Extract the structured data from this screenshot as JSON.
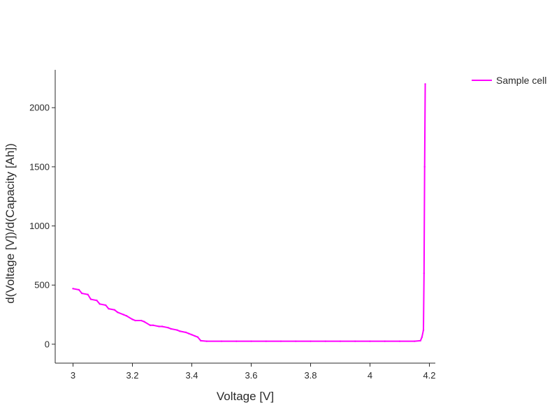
{
  "chart_data": {
    "type": "line",
    "title": "",
    "xlabel": "Voltage [V]",
    "ylabel": "d(Voltage [V])/d(Capacity [Ah])",
    "xlim": [
      2.94,
      4.22
    ],
    "ylim": [
      -160,
      2320
    ],
    "xticks": [
      3,
      3.2,
      3.4,
      3.6,
      3.8,
      4,
      4.2
    ],
    "xtick_labels": [
      "3",
      "3.2",
      "3.4",
      "3.6",
      "3.8",
      "4",
      "4.2"
    ],
    "yticks": [
      0,
      500,
      1000,
      1500,
      2000
    ],
    "ytick_labels": [
      "0",
      "500",
      "1000",
      "1500",
      "2000"
    ],
    "grid": false,
    "legend_position": "top-right",
    "series": [
      {
        "name": "Sample cell",
        "color": "#ff00ff",
        "x": [
          3.0,
          3.02,
          3.03,
          3.05,
          3.06,
          3.08,
          3.09,
          3.11,
          3.12,
          3.14,
          3.15,
          3.17,
          3.18,
          3.2,
          3.21,
          3.23,
          3.24,
          3.26,
          3.27,
          3.29,
          3.3,
          3.32,
          3.33,
          3.35,
          3.36,
          3.38,
          3.39,
          3.4,
          3.41,
          3.42,
          3.43,
          3.45,
          3.5,
          3.55,
          3.6,
          3.65,
          3.7,
          3.75,
          3.8,
          3.85,
          3.9,
          3.95,
          4.0,
          4.05,
          4.1,
          4.15,
          4.17,
          4.175,
          4.18,
          4.182,
          4.184,
          4.186
        ],
        "y": [
          470,
          460,
          430,
          420,
          380,
          370,
          340,
          330,
          300,
          290,
          270,
          250,
          240,
          210,
          200,
          200,
          190,
          160,
          160,
          150,
          150,
          140,
          130,
          120,
          110,
          100,
          90,
          80,
          70,
          60,
          30,
          25,
          25,
          25,
          25,
          25,
          25,
          25,
          25,
          25,
          25,
          25,
          25,
          25,
          25,
          25,
          30,
          60,
          120,
          600,
          1500,
          2200
        ]
      }
    ]
  }
}
